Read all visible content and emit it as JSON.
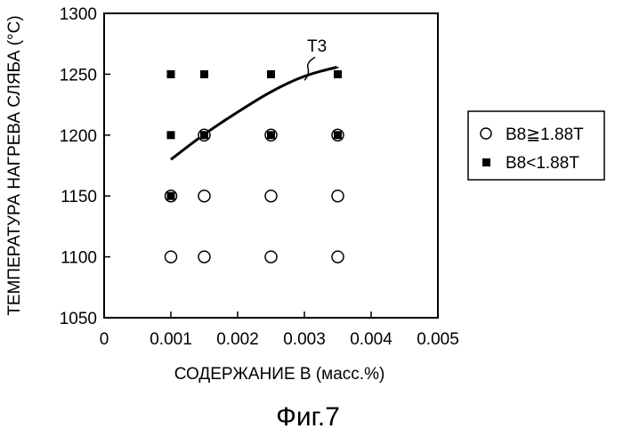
{
  "chart_data": {
    "type": "scatter",
    "xlabel": "СОДЕРЖАНИЕ В (масс.%)",
    "ylabel": "ТЕМПЕРАТУРА НАГРЕВА СЛЯБА (°C)",
    "xlim": [
      0,
      0.005
    ],
    "ylim": [
      1050,
      1300
    ],
    "x_ticks": [
      "0",
      "0.001",
      "0.002",
      "0.003",
      "0.004",
      "0.005"
    ],
    "y_ticks": [
      "1050",
      "1100",
      "1150",
      "1200",
      "1250",
      "1300"
    ],
    "x_tick_values": [
      0,
      0.001,
      0.002,
      0.003,
      0.004,
      0.005
    ],
    "y_tick_values": [
      1050,
      1100,
      1150,
      1200,
      1250,
      1300
    ],
    "grid": false,
    "legend_position": "right",
    "series": [
      {
        "name": "B8≧1.88T",
        "marker": "open-circle",
        "color": "#000000",
        "points": [
          {
            "x": 0.001,
            "y": 1100
          },
          {
            "x": 0.0015,
            "y": 1100
          },
          {
            "x": 0.0025,
            "y": 1100
          },
          {
            "x": 0.0035,
            "y": 1100
          },
          {
            "x": 0.001,
            "y": 1150
          },
          {
            "x": 0.0015,
            "y": 1150
          },
          {
            "x": 0.0025,
            "y": 1150
          },
          {
            "x": 0.0035,
            "y": 1150
          },
          {
            "x": 0.0015,
            "y": 1200
          },
          {
            "x": 0.0025,
            "y": 1200
          },
          {
            "x": 0.0035,
            "y": 1200
          }
        ]
      },
      {
        "name": "B8<1.88T",
        "marker": "filled-square",
        "color": "#000000",
        "points": [
          {
            "x": 0.001,
            "y": 1250
          },
          {
            "x": 0.0015,
            "y": 1250
          },
          {
            "x": 0.0025,
            "y": 1250
          },
          {
            "x": 0.0035,
            "y": 1250
          },
          {
            "x": 0.001,
            "y": 1200
          },
          {
            "x": 0.0015,
            "y": 1200
          },
          {
            "x": 0.0025,
            "y": 1200
          },
          {
            "x": 0.0035,
            "y": 1200
          },
          {
            "x": 0.001,
            "y": 1150
          }
        ]
      }
    ],
    "curve": {
      "label": "T3",
      "points": [
        {
          "x": 0.001,
          "y": 1180
        },
        {
          "x": 0.0015,
          "y": 1201
        },
        {
          "x": 0.002,
          "y": 1219
        },
        {
          "x": 0.0025,
          "y": 1236
        },
        {
          "x": 0.003,
          "y": 1249
        },
        {
          "x": 0.0035,
          "y": 1256
        }
      ]
    }
  },
  "legend": {
    "items": [
      {
        "label": "B8≧1.88T",
        "marker": "open-circle"
      },
      {
        "label": "B8<1.88T",
        "marker": "filled-square"
      }
    ]
  },
  "caption": "Фиг.7"
}
